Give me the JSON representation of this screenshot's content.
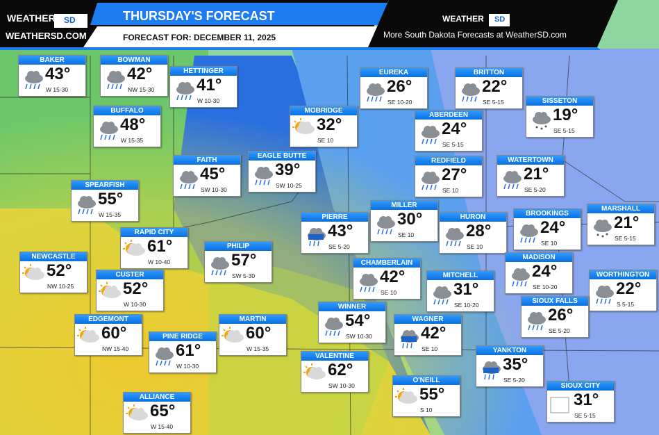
{
  "header": {
    "logo_word": "WEATHER",
    "logo_badge": "SD",
    "logo_site": "WEATHERSD.COM",
    "title": "THURSDAY'S FORECAST",
    "subtitle": "FORECAST FOR: DECEMBER 11, 2025",
    "right_logo_word": "WEATHER",
    "right_logo_badge": "SD",
    "right_text": "More South Dakota Forecasts at WeatherSD.com"
  },
  "cities": [
    {
      "name": "BAKER",
      "temp": "43°",
      "wind": "W 15-30"
    },
    {
      "name": "BOWMAN",
      "temp": "42°",
      "wind": "NW 15-30"
    },
    {
      "name": "HETTINGER",
      "temp": "41°",
      "wind": "W 10-30"
    },
    {
      "name": "BUFFALO",
      "temp": "48°",
      "wind": "W 15-35"
    },
    {
      "name": "EUREKA",
      "temp": "26°",
      "wind": "SE 10-20"
    },
    {
      "name": "BRITTON",
      "temp": "22°",
      "wind": "SE 5-15"
    },
    {
      "name": "MOBRIDGE",
      "temp": "32°",
      "wind": "SE 10"
    },
    {
      "name": "ABERDEEN",
      "temp": "24°",
      "wind": "SE 5-15"
    },
    {
      "name": "SISSETON",
      "temp": "19°",
      "wind": "SE 5-15"
    },
    {
      "name": "FAITH",
      "temp": "45°",
      "wind": "SW 10-30"
    },
    {
      "name": "EAGLE BUTTE",
      "temp": "39°",
      "wind": "SW 10-25"
    },
    {
      "name": "REDFIELD",
      "temp": "27°",
      "wind": "SE 10"
    },
    {
      "name": "WATERTOWN",
      "temp": "21°",
      "wind": "SE 5-20"
    },
    {
      "name": "SPEARFISH",
      "temp": "55°",
      "wind": "W 15-35"
    },
    {
      "name": "MILLER",
      "temp": "30°",
      "wind": "SE 10"
    },
    {
      "name": "MARSHALL",
      "temp": "21°",
      "wind": "SE 5-15"
    },
    {
      "name": "PIERRE",
      "temp": "43°",
      "wind": "SE 5-20"
    },
    {
      "name": "HURON",
      "temp": "28°",
      "wind": "SE 10"
    },
    {
      "name": "BROOKINGS",
      "temp": "24°",
      "wind": "SE 10"
    },
    {
      "name": "RAPID CITY",
      "temp": "61°",
      "wind": "W 10-40"
    },
    {
      "name": "PHILIP",
      "temp": "57°",
      "wind": "SW 5-30"
    },
    {
      "name": "NEWCASTLE",
      "temp": "52°",
      "wind": "NW 10-25"
    },
    {
      "name": "CHAMBERLAIN",
      "temp": "42°",
      "wind": "SE 10"
    },
    {
      "name": "MADISON",
      "temp": "24°",
      "wind": "SE 10-20"
    },
    {
      "name": "CUSTER",
      "temp": "52°",
      "wind": "W 10-30"
    },
    {
      "name": "MITCHELL",
      "temp": "31°",
      "wind": "SE 10-20"
    },
    {
      "name": "WORTHINGTON",
      "temp": "22°",
      "wind": "S 5-15"
    },
    {
      "name": "WINNER",
      "temp": "54°",
      "wind": "SW 10-30"
    },
    {
      "name": "SIOUX FALLS",
      "temp": "26°",
      "wind": "SE 5-20"
    },
    {
      "name": "EDGEMONT",
      "temp": "60°",
      "wind": "NW 15-40"
    },
    {
      "name": "MARTIN",
      "temp": "60°",
      "wind": "W 15-35"
    },
    {
      "name": "WAGNER",
      "temp": "42°",
      "wind": "SE 10"
    },
    {
      "name": "PINE RIDGE",
      "temp": "61°",
      "wind": "W 10-30"
    },
    {
      "name": "VALENTINE",
      "temp": "62°",
      "wind": "SW 10-30"
    },
    {
      "name": "YANKTON",
      "temp": "35°",
      "wind": "SE 5-20"
    },
    {
      "name": "O'NEILL",
      "temp": "55°",
      "wind": "S 10"
    },
    {
      "name": "SIOUX CITY",
      "temp": "31°",
      "wind": "SE 5-15"
    },
    {
      "name": "ALLIANCE",
      "temp": "65°",
      "wind": "W 15-40"
    }
  ]
}
